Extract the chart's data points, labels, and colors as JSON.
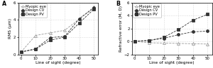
{
  "x": [
    0,
    10,
    20,
    30,
    40,
    50
  ],
  "panel_a": {
    "myopic_eye": [
      0.28,
      2.2,
      2.5,
      2.8,
      4.1,
      5.5
    ],
    "design_cv": [
      0.28,
      0.65,
      1.95,
      2.1,
      4.15,
      5.4
    ],
    "design_pv": [
      0.28,
      0.6,
      1.65,
      2.0,
      3.65,
      5.25
    ],
    "ylabel": "RMS (μm)",
    "ylim": [
      0,
      6
    ],
    "yticks": [
      0,
      2,
      4,
      6
    ],
    "label": "A"
  },
  "panel_b": {
    "myopic_eye": [
      0.0,
      -0.2,
      -0.25,
      -0.3,
      -0.35,
      -0.4
    ],
    "design_cv": [
      0.05,
      0.15,
      0.5,
      1.05,
      1.5,
      1.6
    ],
    "design_pv": [
      0.05,
      0.15,
      0.65,
      1.85,
      3.3,
      4.2
    ],
    "ylabel": "Refractive error (M, D)",
    "ylim": [
      -2,
      6
    ],
    "yticks": [
      -2,
      0,
      2,
      4,
      6
    ],
    "label": "B"
  },
  "xlabel": "Line of sight (degree)",
  "xticks": [
    0,
    10,
    20,
    30,
    40,
    50
  ],
  "legend": [
    "Myopic eye",
    "Design CV",
    "Design PV"
  ],
  "color_myopic": "#999999",
  "color_dark": "#333333",
  "line_style": "--",
  "fontsize": 4.2,
  "marker_size": 2.8,
  "linewidth": 0.6
}
